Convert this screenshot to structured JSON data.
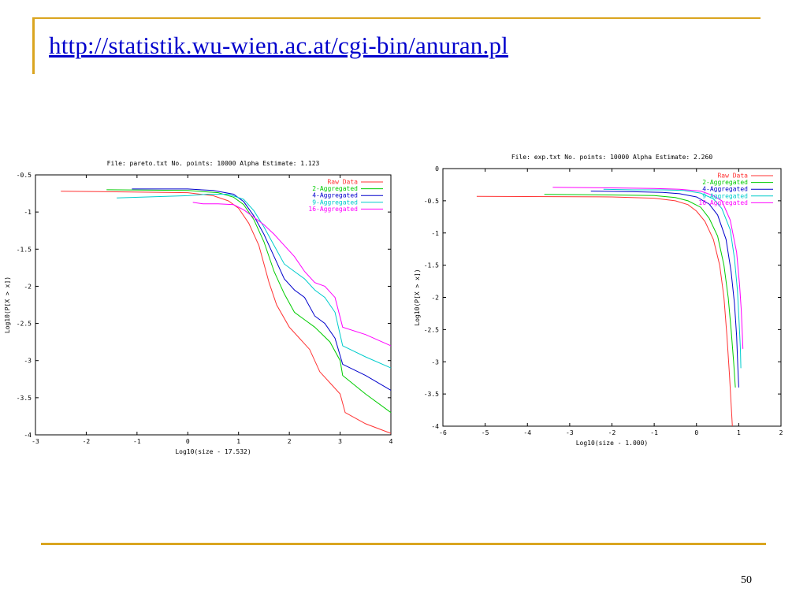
{
  "slide": {
    "title": "http://statistik.wu-wien.ac.at/cgi-bin/anuran.pl",
    "page_number": "50",
    "accent_color": "#daa520",
    "link_color": "#0000cc"
  },
  "chart_data": [
    {
      "type": "line",
      "title": "File: pareto.txt  No. points: 10000  Alpha Estimate: 1.123",
      "xlabel": "Log10(size - 17.532)",
      "ylabel": "Log10(P[X > x])",
      "xlim": [
        -3,
        4
      ],
      "ylim": [
        -4,
        -0.5
      ],
      "xticks": [
        -3,
        -2,
        -1,
        0,
        1,
        2,
        3,
        4
      ],
      "yticks": [
        -0.5,
        -1,
        -1.5,
        -2,
        -2.5,
        -3,
        -3.5,
        -4
      ],
      "legend_position": "top-right",
      "series": [
        {
          "name": "Raw Data",
          "color": "#ff3333",
          "points": [
            [
              -2.5,
              -0.72
            ],
            [
              0,
              -0.74
            ],
            [
              0.5,
              -0.78
            ],
            [
              0.8,
              -0.85
            ],
            [
              1.0,
              -0.95
            ],
            [
              1.2,
              -1.15
            ],
            [
              1.4,
              -1.45
            ],
            [
              1.6,
              -1.95
            ],
            [
              1.75,
              -2.25
            ],
            [
              2.0,
              -2.55
            ],
            [
              2.2,
              -2.7
            ],
            [
              2.4,
              -2.85
            ],
            [
              2.6,
              -3.15
            ],
            [
              2.8,
              -3.3
            ],
            [
              3.0,
              -3.45
            ],
            [
              3.1,
              -3.7
            ],
            [
              3.5,
              -3.85
            ],
            [
              4.0,
              -3.98
            ]
          ]
        },
        {
          "name": "2-Aggregated",
          "color": "#00cc00",
          "points": [
            [
              -1.6,
              -0.7
            ],
            [
              0,
              -0.71
            ],
            [
              0.6,
              -0.74
            ],
            [
              0.9,
              -0.8
            ],
            [
              1.1,
              -0.9
            ],
            [
              1.3,
              -1.1
            ],
            [
              1.5,
              -1.4
            ],
            [
              1.7,
              -1.8
            ],
            [
              1.9,
              -2.1
            ],
            [
              2.1,
              -2.35
            ],
            [
              2.3,
              -2.45
            ],
            [
              2.5,
              -2.55
            ],
            [
              2.8,
              -2.75
            ],
            [
              3.0,
              -3.0
            ],
            [
              3.05,
              -3.2
            ],
            [
              3.5,
              -3.45
            ],
            [
              4.0,
              -3.7
            ]
          ]
        },
        {
          "name": "4-Aggregated",
          "color": "#0000cc",
          "points": [
            [
              -1.1,
              -0.69
            ],
            [
              0,
              -0.69
            ],
            [
              0.5,
              -0.71
            ],
            [
              0.9,
              -0.76
            ],
            [
              1.1,
              -0.86
            ],
            [
              1.3,
              -1.05
            ],
            [
              1.5,
              -1.3
            ],
            [
              1.7,
              -1.6
            ],
            [
              1.9,
              -1.9
            ],
            [
              2.1,
              -2.05
            ],
            [
              2.3,
              -2.15
            ],
            [
              2.5,
              -2.4
            ],
            [
              2.7,
              -2.5
            ],
            [
              2.9,
              -2.7
            ],
            [
              3.05,
              -3.05
            ],
            [
              3.5,
              -3.2
            ],
            [
              4.0,
              -3.4
            ]
          ]
        },
        {
          "name": "9-Aggregated",
          "color": "#00cccc",
          "points": [
            [
              -1.4,
              -0.81
            ],
            [
              0,
              -0.78
            ],
            [
              0.4,
              -0.76
            ],
            [
              0.8,
              -0.76
            ],
            [
              1.1,
              -0.83
            ],
            [
              1.3,
              -0.98
            ],
            [
              1.5,
              -1.2
            ],
            [
              1.7,
              -1.45
            ],
            [
              1.9,
              -1.7
            ],
            [
              2.1,
              -1.8
            ],
            [
              2.3,
              -1.9
            ],
            [
              2.5,
              -2.05
            ],
            [
              2.7,
              -2.15
            ],
            [
              2.9,
              -2.35
            ],
            [
              3.05,
              -2.8
            ],
            [
              3.5,
              -2.95
            ],
            [
              4.0,
              -3.1
            ]
          ]
        },
        {
          "name": "16-Aggregated",
          "color": "#ff00ff",
          "points": [
            [
              0.1,
              -0.87
            ],
            [
              0.3,
              -0.89
            ],
            [
              0.6,
              -0.89
            ],
            [
              0.9,
              -0.9
            ],
            [
              1.1,
              -0.97
            ],
            [
              1.3,
              -1.07
            ],
            [
              1.5,
              -1.17
            ],
            [
              1.7,
              -1.3
            ],
            [
              1.9,
              -1.45
            ],
            [
              2.1,
              -1.6
            ],
            [
              2.3,
              -1.8
            ],
            [
              2.5,
              -1.95
            ],
            [
              2.7,
              -2.0
            ],
            [
              2.9,
              -2.15
            ],
            [
              3.05,
              -2.55
            ],
            [
              3.5,
              -2.65
            ],
            [
              4.0,
              -2.8
            ]
          ]
        }
      ]
    },
    {
      "type": "line",
      "title": "File: exp.txt  No. points: 10000  Alpha Estimate: 2.260",
      "xlabel": "Log10(size - 1.000)",
      "ylabel": "Log10(P[X > x])",
      "xlim": [
        -6,
        2
      ],
      "ylim": [
        -4,
        0
      ],
      "xticks": [
        -6,
        -5,
        -4,
        -3,
        -2,
        -1,
        0,
        1,
        2
      ],
      "yticks": [
        0,
        -0.5,
        -1,
        -1.5,
        -2,
        -2.5,
        -3,
        -3.5,
        -4
      ],
      "legend_position": "top-right",
      "series": [
        {
          "name": "Raw Data",
          "color": "#ff3333",
          "points": [
            [
              -5.2,
              -0.43
            ],
            [
              -2,
              -0.44
            ],
            [
              -1,
              -0.46
            ],
            [
              -0.5,
              -0.5
            ],
            [
              -0.2,
              -0.56
            ],
            [
              0,
              -0.66
            ],
            [
              0.2,
              -0.82
            ],
            [
              0.4,
              -1.1
            ],
            [
              0.55,
              -1.5
            ],
            [
              0.65,
              -2.0
            ],
            [
              0.72,
              -2.6
            ],
            [
              0.78,
              -3.2
            ],
            [
              0.85,
              -4.0
            ]
          ]
        },
        {
          "name": "2-Aggregated",
          "color": "#00cc00",
          "points": [
            [
              -3.6,
              -0.4
            ],
            [
              -2,
              -0.41
            ],
            [
              -1,
              -0.42
            ],
            [
              -0.5,
              -0.45
            ],
            [
              -0.2,
              -0.5
            ],
            [
              0.1,
              -0.6
            ],
            [
              0.3,
              -0.77
            ],
            [
              0.5,
              -1.05
            ],
            [
              0.65,
              -1.5
            ],
            [
              0.75,
              -2.0
            ],
            [
              0.82,
              -2.5
            ],
            [
              0.88,
              -3.0
            ],
            [
              0.92,
              -3.4
            ]
          ]
        },
        {
          "name": "4-Aggregated",
          "color": "#0000cc",
          "points": [
            [
              -2.5,
              -0.35
            ],
            [
              -1.5,
              -0.36
            ],
            [
              -0.8,
              -0.37
            ],
            [
              -0.4,
              -0.39
            ],
            [
              0,
              -0.44
            ],
            [
              0.3,
              -0.55
            ],
            [
              0.5,
              -0.72
            ],
            [
              0.7,
              -1.1
            ],
            [
              0.82,
              -1.6
            ],
            [
              0.9,
              -2.1
            ],
            [
              0.95,
              -2.6
            ],
            [
              0.98,
              -3.1
            ],
            [
              1.0,
              -3.4
            ]
          ]
        },
        {
          "name": "9-Aggregated",
          "color": "#00cccc",
          "points": [
            [
              -2.2,
              -0.32
            ],
            [
              -1.5,
              -0.33
            ],
            [
              -0.8,
              -0.33
            ],
            [
              -0.3,
              -0.34
            ],
            [
              0.1,
              -0.38
            ],
            [
              0.4,
              -0.47
            ],
            [
              0.6,
              -0.62
            ],
            [
              0.8,
              -0.95
            ],
            [
              0.9,
              -1.4
            ],
            [
              0.97,
              -1.9
            ],
            [
              1.01,
              -2.4
            ],
            [
              1.04,
              -2.8
            ],
            [
              1.05,
              -3.1
            ]
          ]
        },
        {
          "name": "16-Aggregated",
          "color": "#ff00ff",
          "points": [
            [
              -3.4,
              -0.29
            ],
            [
              -2,
              -0.3
            ],
            [
              -1,
              -0.31
            ],
            [
              -0.4,
              -0.32
            ],
            [
              0.1,
              -0.35
            ],
            [
              0.4,
              -0.42
            ],
            [
              0.6,
              -0.5
            ],
            [
              0.8,
              -0.8
            ],
            [
              0.95,
              -1.3
            ],
            [
              1.02,
              -1.8
            ],
            [
              1.06,
              -2.2
            ],
            [
              1.08,
              -2.5
            ],
            [
              1.1,
              -2.8
            ]
          ]
        }
      ]
    }
  ]
}
